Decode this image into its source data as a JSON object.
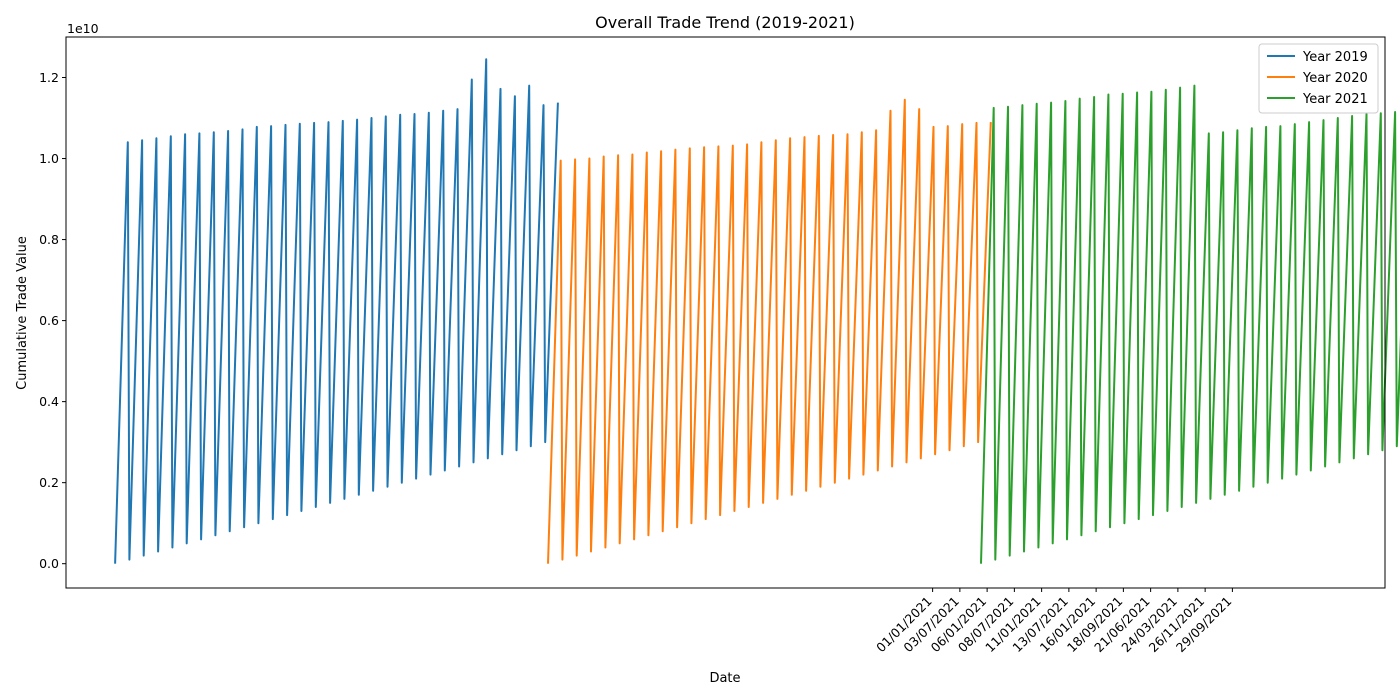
{
  "chart_data": {
    "type": "line",
    "title": "Overall Trade Trend (2019-2021)",
    "xlabel": "Date",
    "ylabel": "Cumulative Trade Value",
    "y_offset_label": "1e10",
    "ylim": [
      -0.06,
      1.3
    ],
    "y_scale": 10000000000,
    "y_ticks": [
      "0.0",
      "0.2",
      "0.4",
      "0.6",
      "0.8",
      "1.0",
      "1.2"
    ],
    "x_ticks": [
      "01/01/2021",
      "03/07/2021",
      "06/01/2021",
      "08/07/2021",
      "11/01/2021",
      "13/07/2021",
      "16/01/2021",
      "18/09/2021",
      "21/06/2021",
      "24/03/2021",
      "26/11/2021",
      "29/09/2021"
    ],
    "x_tick_positions": [
      30,
      31,
      32,
      33,
      34,
      35,
      36,
      37,
      38,
      39,
      40,
      41
    ],
    "xlim": [
      -1.8,
      46.6
    ],
    "grid": false,
    "legend": "top-right",
    "series": [
      {
        "name": "Year 2019",
        "color": "#1f77b4",
        "segments": [
          {
            "start": 0.0,
            "end": 1.04
          },
          {
            "start": 0.01,
            "end": 1.045
          },
          {
            "start": 0.02,
            "end": 1.05
          },
          {
            "start": 0.03,
            "end": 1.055
          },
          {
            "start": 0.04,
            "end": 1.06
          },
          {
            "start": 0.05,
            "end": 1.062
          },
          {
            "start": 0.06,
            "end": 1.065
          },
          {
            "start": 0.07,
            "end": 1.068
          },
          {
            "start": 0.08,
            "end": 1.072
          },
          {
            "start": 0.09,
            "end": 1.078
          },
          {
            "start": 0.1,
            "end": 1.08
          },
          {
            "start": 0.11,
            "end": 1.083
          },
          {
            "start": 0.12,
            "end": 1.086
          },
          {
            "start": 0.13,
            "end": 1.088
          },
          {
            "start": 0.14,
            "end": 1.09
          },
          {
            "start": 0.15,
            "end": 1.093
          },
          {
            "start": 0.16,
            "end": 1.096
          },
          {
            "start": 0.17,
            "end": 1.1
          },
          {
            "start": 0.18,
            "end": 1.104
          },
          {
            "start": 0.19,
            "end": 1.108
          },
          {
            "start": 0.2,
            "end": 1.11
          },
          {
            "start": 0.21,
            "end": 1.113
          },
          {
            "start": 0.22,
            "end": 1.118
          },
          {
            "start": 0.23,
            "end": 1.122
          },
          {
            "start": 0.24,
            "end": 1.195
          },
          {
            "start": 0.25,
            "end": 1.245
          },
          {
            "start": 0.26,
            "end": 1.172
          },
          {
            "start": 0.27,
            "end": 1.154
          },
          {
            "start": 0.28,
            "end": 1.18
          },
          {
            "start": 0.29,
            "end": 1.132
          },
          {
            "start": 0.3,
            "end": 1.138
          }
        ]
      },
      {
        "name": "Year 2020",
        "color": "#ff7f0e",
        "segments": [
          {
            "start": 0.0,
            "end": 0.995
          },
          {
            "start": 0.01,
            "end": 0.998
          },
          {
            "start": 0.02,
            "end": 1.0
          },
          {
            "start": 0.03,
            "end": 1.005
          },
          {
            "start": 0.04,
            "end": 1.008
          },
          {
            "start": 0.05,
            "end": 1.01
          },
          {
            "start": 0.06,
            "end": 1.015
          },
          {
            "start": 0.07,
            "end": 1.018
          },
          {
            "start": 0.08,
            "end": 1.022
          },
          {
            "start": 0.09,
            "end": 1.025
          },
          {
            "start": 0.1,
            "end": 1.028
          },
          {
            "start": 0.11,
            "end": 1.03
          },
          {
            "start": 0.12,
            "end": 1.032
          },
          {
            "start": 0.13,
            "end": 1.035
          },
          {
            "start": 0.14,
            "end": 1.04
          },
          {
            "start": 0.15,
            "end": 1.045
          },
          {
            "start": 0.16,
            "end": 1.05
          },
          {
            "start": 0.17,
            "end": 1.053
          },
          {
            "start": 0.18,
            "end": 1.056
          },
          {
            "start": 0.19,
            "end": 1.058
          },
          {
            "start": 0.2,
            "end": 1.06
          },
          {
            "start": 0.21,
            "end": 1.065
          },
          {
            "start": 0.22,
            "end": 1.07
          },
          {
            "start": 0.23,
            "end": 1.118
          },
          {
            "start": 0.24,
            "end": 1.145
          },
          {
            "start": 0.25,
            "end": 1.122
          },
          {
            "start": 0.26,
            "end": 1.078
          },
          {
            "start": 0.27,
            "end": 1.08
          },
          {
            "start": 0.28,
            "end": 1.085
          },
          {
            "start": 0.29,
            "end": 1.088
          },
          {
            "start": 0.3,
            "end": 1.09
          }
        ]
      },
      {
        "name": "Year 2021",
        "color": "#2ca02c",
        "segments": [
          {
            "start": 0.0,
            "end": 1.125
          },
          {
            "start": 0.01,
            "end": 1.128
          },
          {
            "start": 0.02,
            "end": 1.132
          },
          {
            "start": 0.03,
            "end": 1.135
          },
          {
            "start": 0.04,
            "end": 1.138
          },
          {
            "start": 0.05,
            "end": 1.142
          },
          {
            "start": 0.06,
            "end": 1.148
          },
          {
            "start": 0.07,
            "end": 1.152
          },
          {
            "start": 0.08,
            "end": 1.158
          },
          {
            "start": 0.09,
            "end": 1.16
          },
          {
            "start": 0.1,
            "end": 1.163
          },
          {
            "start": 0.11,
            "end": 1.165
          },
          {
            "start": 0.12,
            "end": 1.17
          },
          {
            "start": 0.13,
            "end": 1.175
          },
          {
            "start": 0.14,
            "end": 1.18
          },
          {
            "start": 0.15,
            "end": 1.062
          },
          {
            "start": 0.16,
            "end": 1.065
          },
          {
            "start": 0.17,
            "end": 1.07
          },
          {
            "start": 0.18,
            "end": 1.075
          },
          {
            "start": 0.19,
            "end": 1.078
          },
          {
            "start": 0.2,
            "end": 1.08
          },
          {
            "start": 0.21,
            "end": 1.085
          },
          {
            "start": 0.22,
            "end": 1.09
          },
          {
            "start": 0.23,
            "end": 1.095
          },
          {
            "start": 0.24,
            "end": 1.1
          },
          {
            "start": 0.25,
            "end": 1.105
          },
          {
            "start": 0.26,
            "end": 1.11
          },
          {
            "start": 0.27,
            "end": 1.112
          },
          {
            "start": 0.28,
            "end": 1.115
          },
          {
            "start": 0.29,
            "end": 1.12
          },
          {
            "start": 0.3,
            "end": 1.0
          }
        ]
      }
    ]
  }
}
